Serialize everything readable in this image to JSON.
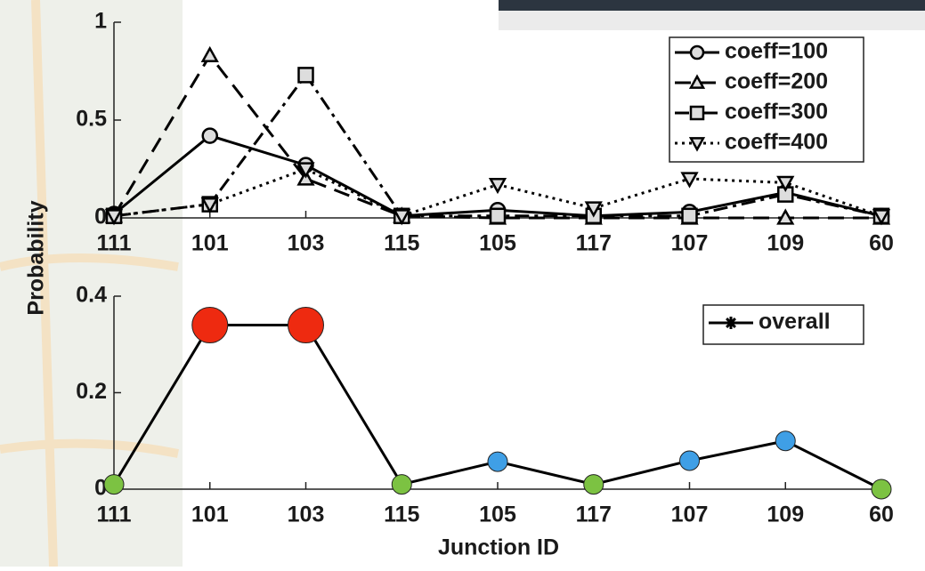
{
  "chart_data": [
    {
      "type": "line",
      "ylabel": "Probability",
      "categories": [
        "111",
        "101",
        "103",
        "115",
        "105",
        "117",
        "107",
        "109",
        "60"
      ],
      "ylim": [
        0,
        1
      ],
      "yticks": [
        0,
        0.5,
        1
      ],
      "legend": "upper right",
      "series": [
        {
          "name": "coeff=100",
          "color": "#000000",
          "linestyle": "solid",
          "marker": "o",
          "values": [
            0.02,
            0.42,
            0.27,
            0.01,
            0.04,
            0.01,
            0.03,
            0.13,
            0.01
          ]
        },
        {
          "name": "coeff=200",
          "color": "#000000",
          "linestyle": "dashed",
          "marker": "^",
          "values": [
            0.01,
            0.83,
            0.2,
            0.01,
            0.0,
            0.0,
            0.0,
            0.0,
            0.0
          ]
        },
        {
          "name": "coeff=300",
          "color": "#000000",
          "linestyle": "dashdot",
          "marker": "s",
          "values": [
            0.01,
            0.07,
            0.73,
            0.01,
            0.01,
            0.01,
            0.01,
            0.12,
            0.01
          ]
        },
        {
          "name": "coeff=400",
          "color": "#000000",
          "linestyle": "dotted",
          "marker": "v",
          "values": [
            0.01,
            0.07,
            0.25,
            0.01,
            0.17,
            0.05,
            0.2,
            0.18,
            0.01
          ]
        }
      ]
    },
    {
      "type": "line",
      "xlabel": "Junction ID",
      "categories": [
        "111",
        "101",
        "103",
        "115",
        "105",
        "117",
        "107",
        "109",
        "60"
      ],
      "ylim": [
        0,
        0.4
      ],
      "yticks": [
        0,
        0.2,
        0.4
      ],
      "legend": "upper right",
      "series": [
        {
          "name": "overall",
          "color": "#000000",
          "linestyle": "solid",
          "marker": "*",
          "marker_colors": [
            "#7cc242",
            "#ee2a10",
            "#ee2a10",
            "#7cc242",
            "#3f9fe6",
            "#7cc242",
            "#3f9fe6",
            "#3f9fe6",
            "#7cc242"
          ],
          "values": [
            0.01,
            0.34,
            0.34,
            0.01,
            0.057,
            0.01,
            0.059,
            0.1,
            0.0
          ]
        }
      ]
    }
  ]
}
